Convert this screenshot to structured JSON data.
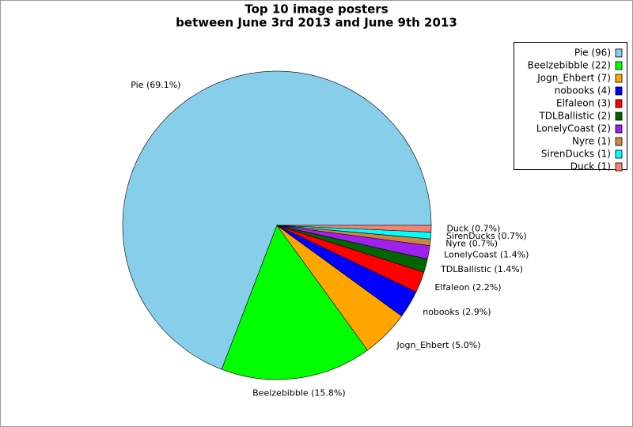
{
  "chart_data": {
    "type": "pie",
    "title": "Top 10 image posters",
    "subtitle": "between June 3rd 2013 and June 9th 2013",
    "categories": [
      "Pie",
      "Beelzebibble",
      "Jogn_Ehbert",
      "nobooks",
      "Elfaleon",
      "TDLBallistic",
      "LonelyCoast",
      "Nyre",
      "SirenDucks",
      "Duck"
    ],
    "values": [
      69.1,
      15.8,
      5.0,
      2.9,
      2.2,
      1.4,
      1.4,
      0.7,
      0.7,
      0.7
    ],
    "value_labels": [
      "Pie (69.1%)",
      "Beelzebibble (15.8%)",
      "Jogn_Ehbert (5.0%)",
      "nobooks (2.9%)",
      "Elfaleon (2.2%)",
      "TDLBallistic (1.4%)",
      "LonelyCoast (1.4%)",
      "Nyre (0.7%)",
      "SirenDucks (0.7%)",
      "Duck (0.7%)"
    ],
    "legend_labels": [
      "Pie (96)",
      "Beelzebibble (22)",
      "Jogn_Ehbert (7)",
      "nobooks (4)",
      "Elfaleon (3)",
      "TDLBallistic (2)",
      "LonelyCoast (2)",
      "Nyre (1)",
      "SirenDucks (1)",
      "Duck (1)"
    ],
    "colors": [
      "#87ceeb",
      "#00ff00",
      "#ffa500",
      "#0000ff",
      "#ff0000",
      "#006400",
      "#a020f0",
      "#cd853f",
      "#00ffff",
      "#fa8072"
    ],
    "legend": "upper right"
  }
}
